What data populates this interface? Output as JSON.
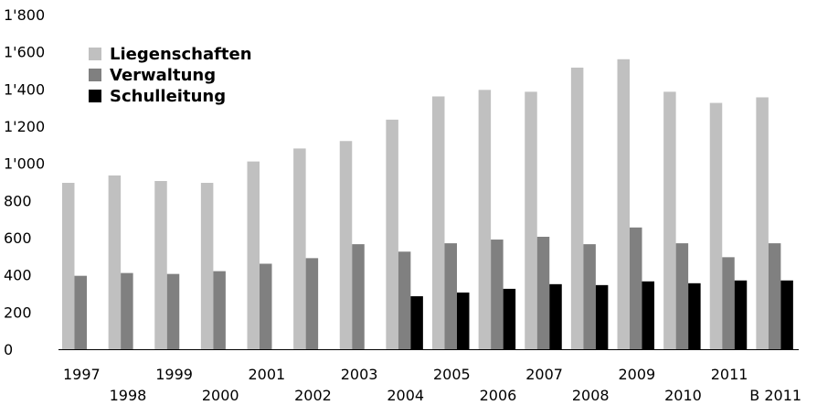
{
  "chart_data": {
    "type": "bar",
    "categories": [
      "1997",
      "1998",
      "1999",
      "2000",
      "2001",
      "2002",
      "2003",
      "2004",
      "2005",
      "2006",
      "2007",
      "2008",
      "2009",
      "2010",
      "2011",
      "B 2011"
    ],
    "series": [
      {
        "name": "Liegenschaften",
        "color": "#c0c0c0",
        "values": [
          895,
          935,
          905,
          895,
          1010,
          1080,
          1120,
          1235,
          1360,
          1395,
          1385,
          1515,
          1560,
          1385,
          1325,
          1355
        ]
      },
      {
        "name": "Verwaltung",
        "color": "#808080",
        "values": [
          395,
          410,
          405,
          420,
          460,
          490,
          565,
          525,
          570,
          590,
          605,
          565,
          655,
          570,
          495,
          570
        ]
      },
      {
        "name": "Schulleitung",
        "color": "#000000",
        "values": [
          0,
          0,
          0,
          0,
          0,
          0,
          0,
          285,
          305,
          325,
          350,
          345,
          365,
          355,
          370,
          370
        ]
      }
    ],
    "yticks": [
      "0",
      "200",
      "400",
      "600",
      "800",
      "1'000",
      "1'200",
      "1'400",
      "1'600",
      "1'800"
    ],
    "ylim": [
      0,
      1800
    ],
    "title": "",
    "xlabel": "",
    "ylabel": "",
    "legend": "top-left",
    "grid": false
  }
}
